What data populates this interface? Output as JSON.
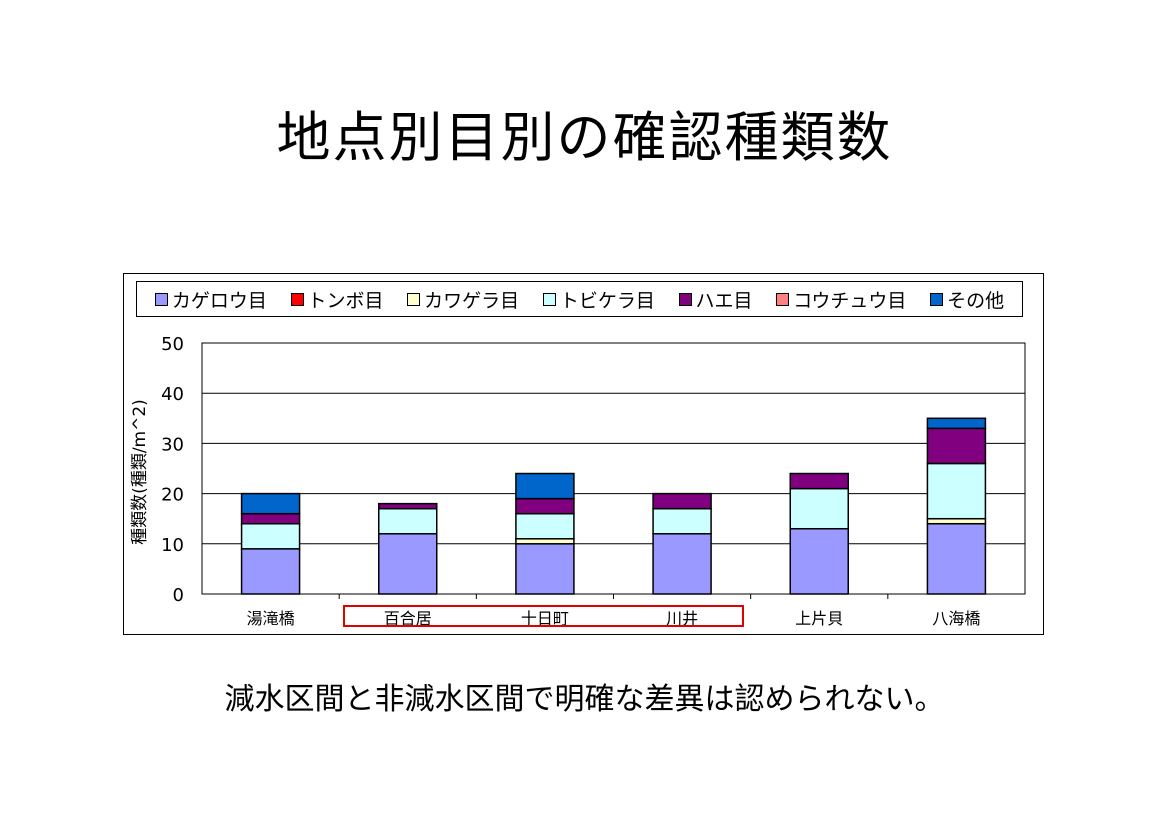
{
  "slide": {
    "title": "地点別目別の確認種類数",
    "conclusion": "減水区間と非減水区間で明確な差異は認められない。"
  },
  "chart_data": {
    "type": "bar",
    "stacked": true,
    "categories": [
      "湯滝橋",
      "百合居",
      "十日町",
      "川井",
      "上片貝",
      "八海橋"
    ],
    "ylabel": "種類数(種類/m^2)",
    "ylim": [
      0,
      50
    ],
    "yticks": [
      0,
      10,
      20,
      30,
      40,
      50
    ],
    "grid": true,
    "legend_position": "top",
    "highlighted_categories": [
      "百合居",
      "十日町",
      "川井"
    ],
    "highlight_color": "#e00000",
    "series": [
      {
        "name": "カゲロウ目",
        "color": "#9999ff",
        "values": [
          9,
          12,
          10,
          12,
          13,
          14
        ]
      },
      {
        "name": "トンボ目",
        "color": "#ff0000",
        "values": [
          0,
          0,
          0,
          0,
          0,
          0
        ]
      },
      {
        "name": "カワゲラ目",
        "color": "#ffffcc",
        "values": [
          0,
          0,
          1,
          0,
          0,
          1
        ]
      },
      {
        "name": "トビケラ目",
        "color": "#ccffff",
        "values": [
          5,
          5,
          5,
          5,
          8,
          11
        ]
      },
      {
        "name": "ハエ目",
        "color": "#800080",
        "values": [
          2,
          1,
          3,
          3,
          3,
          7
        ]
      },
      {
        "name": "コウチュウ目",
        "color": "#ff8080",
        "values": [
          0,
          0,
          0,
          0,
          0,
          0
        ]
      },
      {
        "name": "その他",
        "color": "#0066cc",
        "values": [
          4,
          0,
          5,
          0,
          0,
          2
        ]
      }
    ]
  }
}
